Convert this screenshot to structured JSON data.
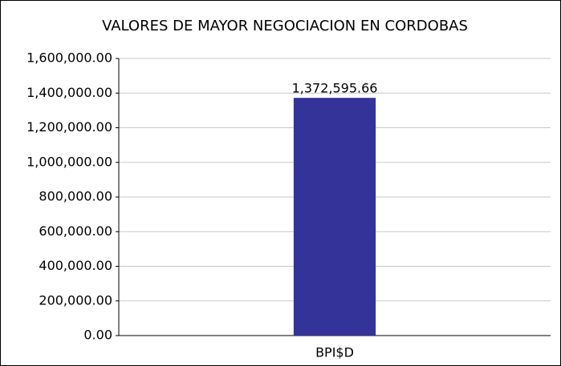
{
  "chart_data": {
    "type": "bar",
    "title": "VALORES DE MAYOR NEGOCIACION EN CORDOBAS",
    "categories": [
      "BPI$D"
    ],
    "values": [
      1372595.66
    ],
    "value_labels": [
      "1,372,595.66"
    ],
    "color": "#333399",
    "ylim": [
      0,
      1600000
    ],
    "yticks": [
      {
        "value": 0,
        "label": "0.00"
      },
      {
        "value": 200000,
        "label": "200,000.00"
      },
      {
        "value": 400000,
        "label": "400,000.00"
      },
      {
        "value": 600000,
        "label": "600,000.00"
      },
      {
        "value": 800000,
        "label": "800,000.00"
      },
      {
        "value": 1000000,
        "label": "1,000,000.00"
      },
      {
        "value": 1200000,
        "label": "1,200,000.00"
      },
      {
        "value": 1400000,
        "label": "1,400,000.00"
      },
      {
        "value": 1600000,
        "label": "1,600,000.00"
      }
    ],
    "grid": true
  }
}
